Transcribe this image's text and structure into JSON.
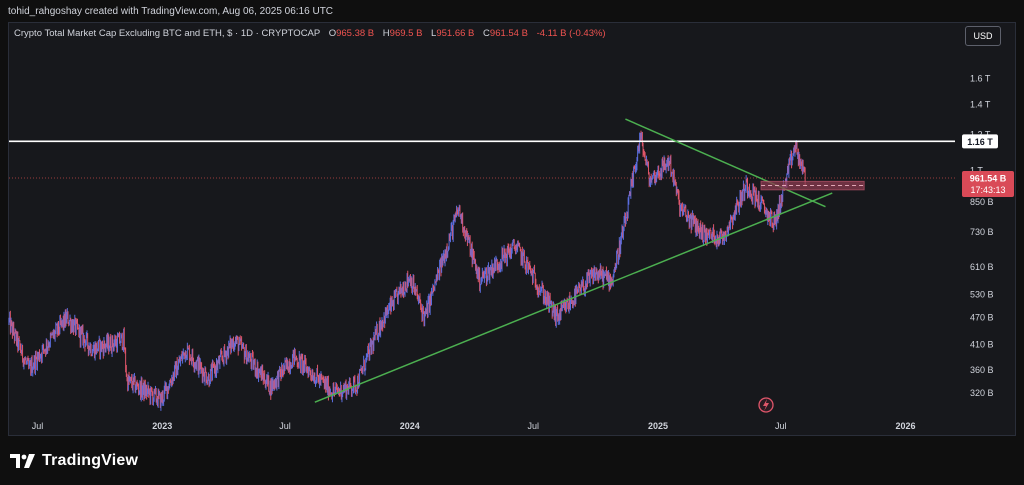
{
  "header": {
    "credit": "tohid_rahgoshay created with TradingView.com, Aug 06, 2025 06:16 UTC"
  },
  "legend": {
    "symbol": "Crypto Total Market Cap Excluding BTC and ETH, $ · 1D · CRYPTOCAP",
    "open_label": "O",
    "open_value": "965.38 B",
    "high_label": "H",
    "high_value": "969.5 B",
    "low_label": "L",
    "low_value": "951.66 B",
    "close_label": "C",
    "close_value": "961.54 B",
    "change": "-4.11 B (-0.43%)"
  },
  "currency_button": "USD",
  "brand": {
    "name": "TradingView"
  },
  "colors": {
    "up": "#5b6ee1",
    "down": "#e0566a",
    "trendline": "#4caf50",
    "resistance": "#ffffff",
    "zone": "#8b3a4f",
    "price_line": "#ef5350"
  },
  "chart_data": {
    "type": "candlestick",
    "title": "Crypto Total Market Cap Excluding BTC and ETH",
    "y_scale": "log",
    "ylim": [
      290,
      1900
    ],
    "xlim": [
      "2022-05-20",
      "2026-03-15"
    ],
    "y_ticks": [
      {
        "value": 320,
        "label": "320 B"
      },
      {
        "value": 360,
        "label": "360 B"
      },
      {
        "value": 410,
        "label": "410 B"
      },
      {
        "value": 470,
        "label": "470 B"
      },
      {
        "value": 530,
        "label": "530 B"
      },
      {
        "value": 610,
        "label": "610 B"
      },
      {
        "value": 730,
        "label": "730 B"
      },
      {
        "value": 850,
        "label": "850 B"
      },
      {
        "value": 1000,
        "label": "1 T"
      },
      {
        "value": 1200,
        "label": "1.2 T"
      },
      {
        "value": 1400,
        "label": "1.4 T"
      },
      {
        "value": 1600,
        "label": "1.6 T"
      }
    ],
    "x_ticks": [
      {
        "date": "2022-07-01",
        "label": "Jul",
        "bold": false
      },
      {
        "date": "2023-01-01",
        "label": "2023",
        "bold": true
      },
      {
        "date": "2023-07-01",
        "label": "Jul",
        "bold": false
      },
      {
        "date": "2024-01-01",
        "label": "2024",
        "bold": true
      },
      {
        "date": "2024-07-01",
        "label": "Jul",
        "bold": false
      },
      {
        "date": "2025-01-01",
        "label": "2025",
        "bold": true
      },
      {
        "date": "2025-07-01",
        "label": "Jul",
        "bold": false
      },
      {
        "date": "2026-01-01",
        "label": "2026",
        "bold": true
      }
    ],
    "price_path": [
      [
        "2022-05-20",
        460
      ],
      [
        "2022-06-18",
        360
      ],
      [
        "2022-07-20",
        420
      ],
      [
        "2022-08-14",
        470
      ],
      [
        "2022-09-20",
        400
      ],
      [
        "2022-11-05",
        420
      ],
      [
        "2022-11-10",
        340
      ],
      [
        "2022-12-30",
        308
      ],
      [
        "2023-02-05",
        400
      ],
      [
        "2023-03-10",
        345
      ],
      [
        "2023-04-18",
        420
      ],
      [
        "2023-06-10",
        330
      ],
      [
        "2023-07-14",
        385
      ],
      [
        "2023-09-11",
        320
      ],
      [
        "2023-10-15",
        335
      ],
      [
        "2023-11-20",
        460
      ],
      [
        "2024-01-01",
        580
      ],
      [
        "2024-01-23",
        470
      ],
      [
        "2024-03-13",
        820
      ],
      [
        "2024-04-13",
        570
      ],
      [
        "2024-06-05",
        680
      ],
      [
        "2024-08-05",
        470
      ],
      [
        "2024-09-30",
        590
      ],
      [
        "2024-10-25",
        570
      ],
      [
        "2024-11-15",
        780
      ],
      [
        "2024-12-06",
        1190
      ],
      [
        "2024-12-20",
        950
      ],
      [
        "2025-01-18",
        1050
      ],
      [
        "2025-02-03",
        820
      ],
      [
        "2025-03-10",
        720
      ],
      [
        "2025-04-07",
        710
      ],
      [
        "2025-05-12",
        930
      ],
      [
        "2025-06-22",
        760
      ],
      [
        "2025-07-22",
        1130
      ],
      [
        "2025-08-06",
        961.54
      ]
    ],
    "last_price": {
      "value": 961.54,
      "label": "961.54 B",
      "countdown": "17:43:13"
    },
    "resistance": {
      "value": 1160,
      "label": "1.16 T"
    },
    "annotations": [
      {
        "type": "descending-trendline",
        "from": [
          "2024-11-14",
          1300
        ],
        "to": [
          "2025-09-05",
          830
        ]
      },
      {
        "type": "ascending-trendline",
        "from": [
          "2023-08-14",
          305
        ],
        "to": [
          "2025-09-15",
          890
        ]
      },
      {
        "type": "support-zone",
        "from_date": "2025-06-02",
        "to_date": "2025-11-01",
        "low": 905,
        "high": 945
      }
    ]
  }
}
